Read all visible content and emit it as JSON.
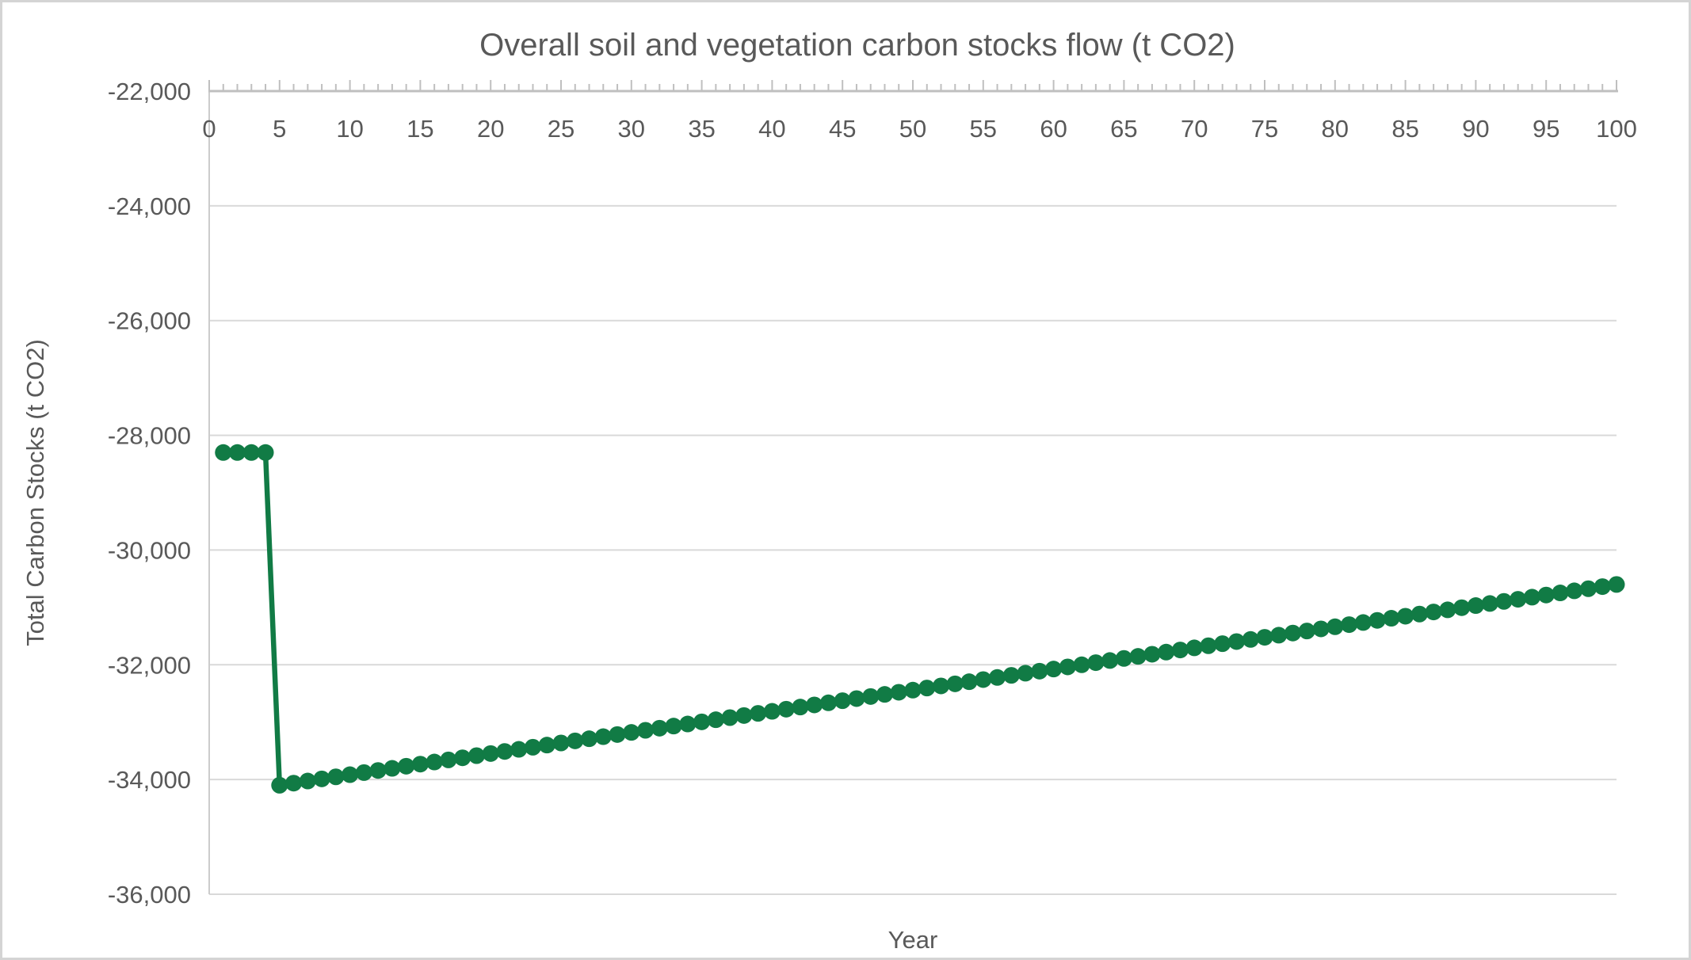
{
  "figure": {
    "title": "Overall soil and vegetation carbon stocks flow (t CO2)"
  },
  "style": {
    "series_color": "#117b45",
    "gridline_color": "#d9d9d9",
    "axis_line_color": "#bfbfbf",
    "left_axis_color": "#cccccc",
    "text_color": "#595959",
    "background_color": "#ffffff",
    "border_color": "#d4d4d4"
  },
  "chart_data": {
    "type": "line",
    "title": "Overall soil and vegetation carbon stocks flow (t CO2)",
    "xlabel": "Year",
    "ylabel": "Total Carbon Stocks (t CO2)",
    "xlim": [
      0,
      100
    ],
    "ylim": [
      -36000,
      -22000
    ],
    "x_axis_position": "top",
    "x_major_ticks": [
      0,
      5,
      10,
      15,
      20,
      25,
      30,
      35,
      40,
      45,
      50,
      55,
      60,
      65,
      70,
      75,
      80,
      85,
      90,
      95,
      100
    ],
    "x_tick_labels": [
      "0",
      "5",
      "10",
      "15",
      "20",
      "25",
      "30",
      "35",
      "40",
      "45",
      "50",
      "55",
      "60",
      "65",
      "70",
      "75",
      "80",
      "85",
      "90",
      "95",
      "100"
    ],
    "x_minor_tick_step": 1,
    "y_ticks": [
      -22000,
      -24000,
      -26000,
      -28000,
      -30000,
      -32000,
      -34000,
      -36000
    ],
    "y_tick_labels": [
      "-22,000",
      "-24,000",
      "-26,000",
      "-28,000",
      "-30,000",
      "-32,000",
      "-34,000",
      "-36,000"
    ],
    "grid": "horizontal-only",
    "legend": "none",
    "marker": "filled-circle",
    "series": [
      {
        "name": "Total carbon stocks",
        "color": "#117b45",
        "x": [
          1,
          2,
          3,
          4,
          5,
          6,
          7,
          8,
          9,
          10,
          11,
          12,
          13,
          14,
          15,
          16,
          17,
          18,
          19,
          20,
          21,
          22,
          23,
          24,
          25,
          26,
          27,
          28,
          29,
          30,
          31,
          32,
          33,
          34,
          35,
          36,
          37,
          38,
          39,
          40,
          41,
          42,
          43,
          44,
          45,
          46,
          47,
          48,
          49,
          50,
          51,
          52,
          53,
          54,
          55,
          56,
          57,
          58,
          59,
          60,
          61,
          62,
          63,
          64,
          65,
          66,
          67,
          68,
          69,
          70,
          71,
          72,
          73,
          74,
          75,
          76,
          77,
          78,
          79,
          80,
          81,
          82,
          83,
          84,
          85,
          86,
          87,
          88,
          89,
          90,
          91,
          92,
          93,
          94,
          95,
          96,
          97,
          98,
          99,
          100
        ],
        "y": [
          -28300,
          -28300,
          -28300,
          -28300,
          -34100,
          -34063,
          -34026,
          -33989,
          -33953,
          -33916,
          -33879,
          -33842,
          -33805,
          -33768,
          -33732,
          -33695,
          -33658,
          -33621,
          -33584,
          -33547,
          -33511,
          -33474,
          -33437,
          -33400,
          -33363,
          -33326,
          -33289,
          -33253,
          -33216,
          -33179,
          -33142,
          -33105,
          -33068,
          -33032,
          -32995,
          -32958,
          -32921,
          -32884,
          -32847,
          -32811,
          -32774,
          -32737,
          -32700,
          -32663,
          -32626,
          -32589,
          -32553,
          -32516,
          -32479,
          -32442,
          -32405,
          -32368,
          -32332,
          -32295,
          -32258,
          -32221,
          -32184,
          -32147,
          -32111,
          -32074,
          -32037,
          -32000,
          -31963,
          -31926,
          -31889,
          -31853,
          -31816,
          -31779,
          -31742,
          -31705,
          -31668,
          -31632,
          -31595,
          -31558,
          -31521,
          -31484,
          -31447,
          -31411,
          -31374,
          -31337,
          -31300,
          -31263,
          -31226,
          -31189,
          -31153,
          -31116,
          -31079,
          -31042,
          -31005,
          -30968,
          -30932,
          -30895,
          -30858,
          -30821,
          -30784,
          -30747,
          -30711,
          -30674,
          -30637,
          -30600
        ]
      }
    ]
  }
}
